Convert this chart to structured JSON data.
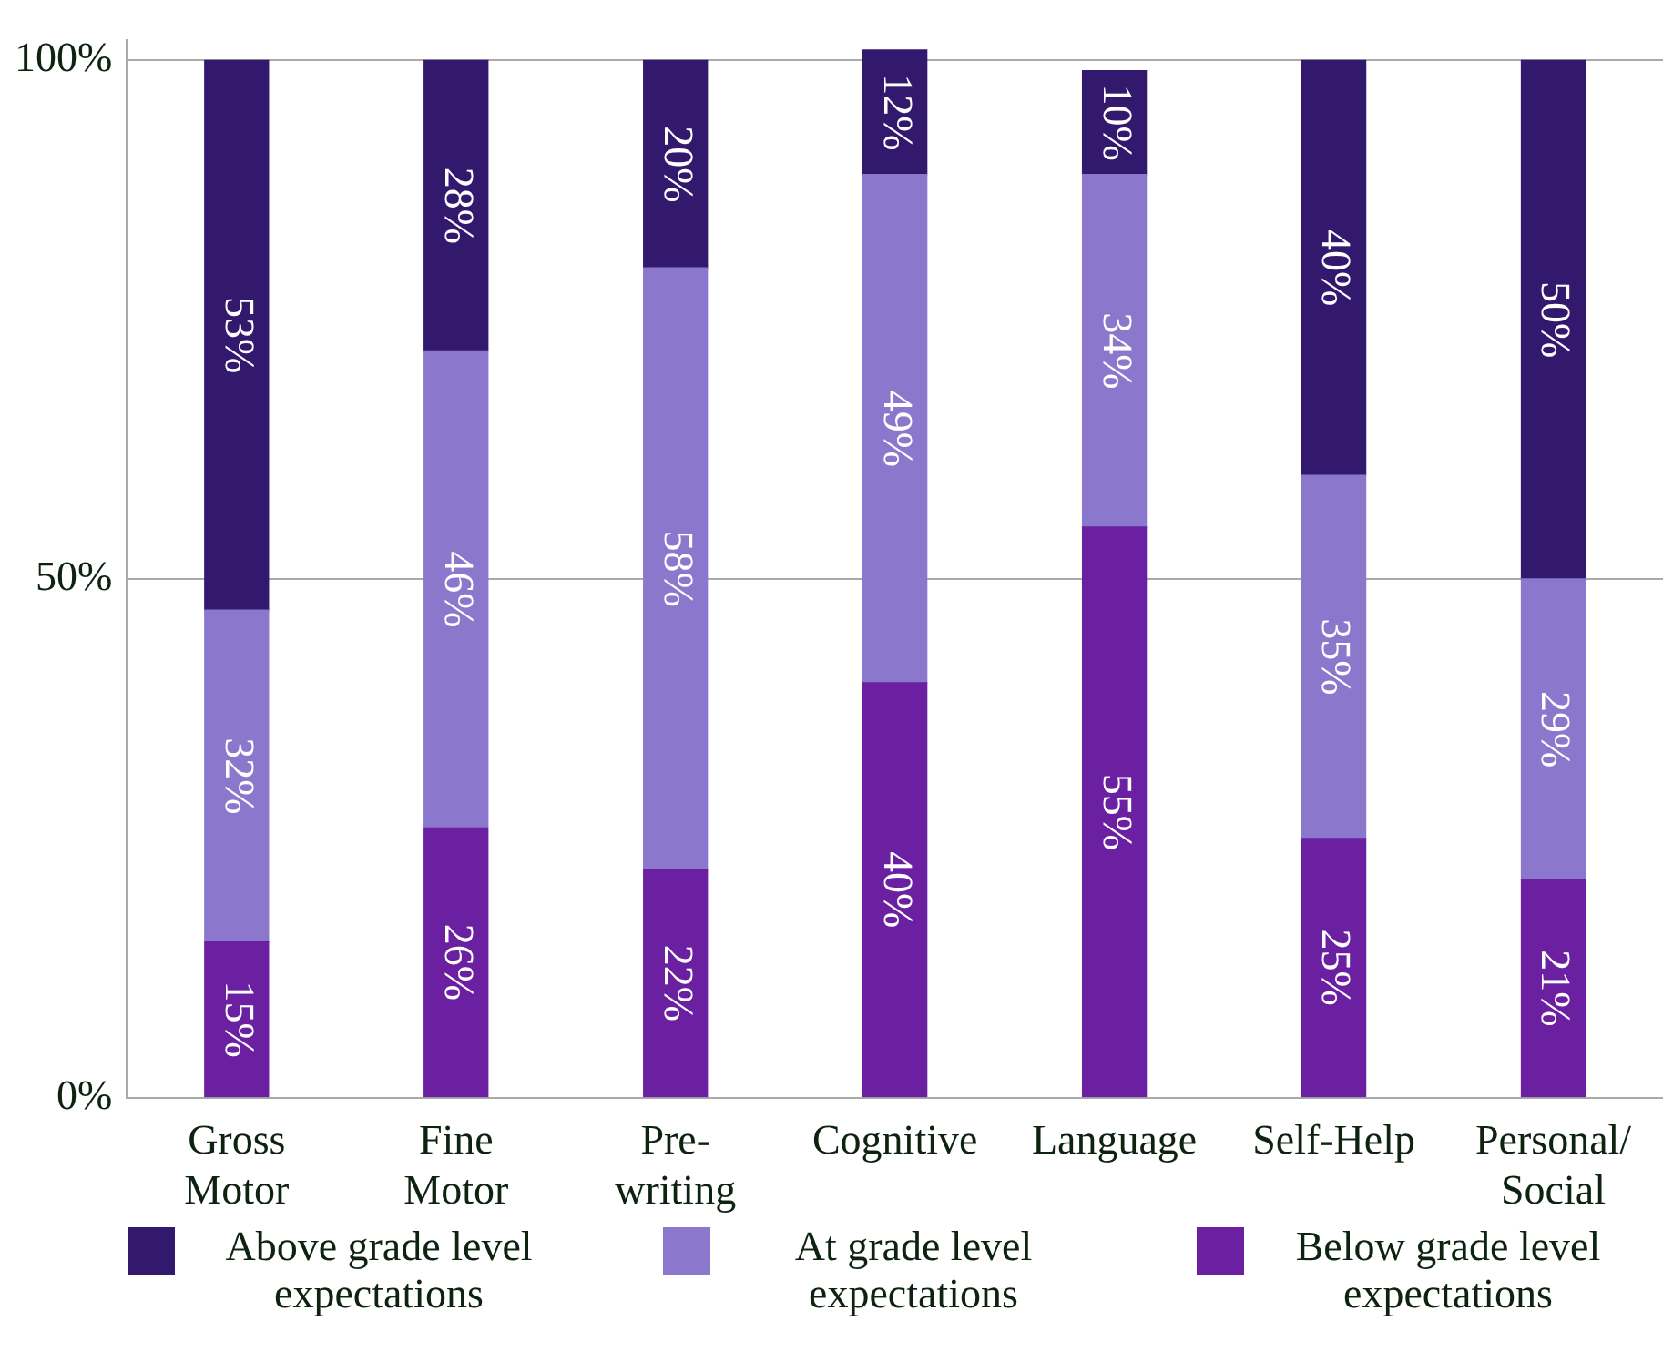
{
  "chart_data": {
    "type": "bar",
    "stacked": true,
    "categories": [
      "Gross Motor",
      "Fine Motor",
      "Pre-writing",
      "Cognitive",
      "Language",
      "Self-Help",
      "Personal/Social"
    ],
    "series": [
      {
        "name": "Below grade level expectations",
        "color": "#6a20a0",
        "values": [
          15,
          26,
          22,
          40,
          55,
          25,
          21
        ],
        "value_labels": [
          "15%",
          "26%",
          "22%",
          "40%",
          "55%",
          "25%",
          "21%"
        ]
      },
      {
        "name": "At grade level expectations",
        "color": "#8b78cc",
        "values": [
          32,
          46,
          58,
          49,
          34,
          35,
          29
        ],
        "value_labels": [
          "32%",
          "46%",
          "58%",
          "49%",
          "34%",
          "35%",
          "29%"
        ]
      },
      {
        "name": "Above grade level expectations",
        "color": "#33196e",
        "values": [
          53,
          28,
          20,
          12,
          10,
          40,
          50
        ],
        "value_labels": [
          "53%",
          "28%",
          "20%",
          "12%",
          "10%",
          "40%",
          "50%"
        ]
      }
    ],
    "ylim": [
      0,
      102
    ],
    "yticks": [
      {
        "value": 0,
        "label": "0%"
      },
      {
        "value": 50,
        "label": "50%"
      },
      {
        "value": 100,
        "label": "100%"
      }
    ],
    "grid": "y",
    "legend": "bottom"
  }
}
